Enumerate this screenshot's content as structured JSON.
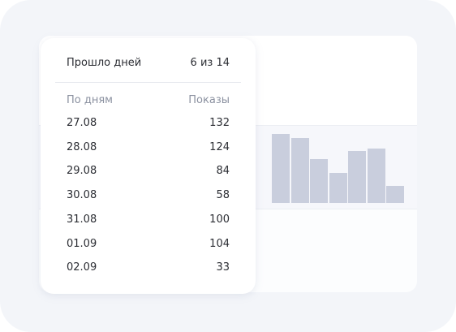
{
  "popup": {
    "elapsed_label": "Прошло дней",
    "elapsed_value": "6 из 14",
    "col_day": "По дням",
    "col_impressions": "Показы",
    "rows": [
      {
        "day": "27.08",
        "value": "132"
      },
      {
        "day": "28.08",
        "value": "124"
      },
      {
        "day": "29.08",
        "value": "84"
      },
      {
        "day": "30.08",
        "value": "58"
      },
      {
        "day": "31.08",
        "value": "100"
      },
      {
        "day": "01.09",
        "value": "104"
      },
      {
        "day": "02.09",
        "value": "33"
      }
    ]
  },
  "chart_data": {
    "type": "bar",
    "categories": [
      "27.08",
      "28.08",
      "29.08",
      "30.08",
      "31.08",
      "01.09",
      "02.09"
    ],
    "values": [
      132,
      124,
      84,
      58,
      100,
      104,
      33
    ],
    "title": "",
    "xlabel": "",
    "ylabel": "",
    "ylim": [
      0,
      140
    ],
    "color": "#c9cedd"
  }
}
